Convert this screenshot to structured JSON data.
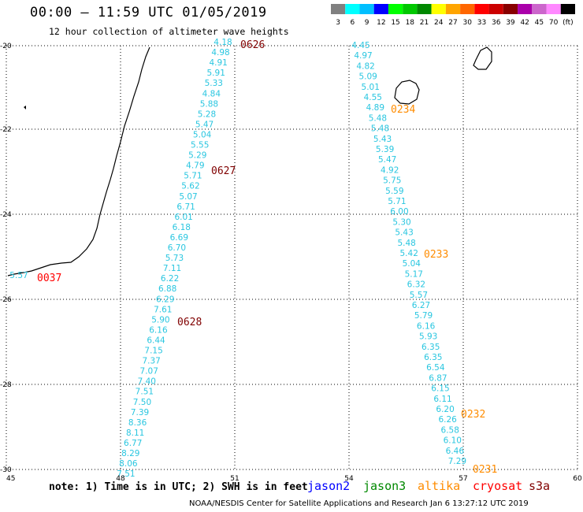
{
  "header": {
    "title": "00:00 — 11:59 UTC 01/05/2019",
    "subtitle": "12 hour collection of altimeter wave heights"
  },
  "legend": {
    "colors": [
      "#808080",
      "#00ffff",
      "#00bfff",
      "#0000ff",
      "#00ff00",
      "#00c800",
      "#008800",
      "#ffff00",
      "#ffa500",
      "#ff6600",
      "#ff0000",
      "#cc0000",
      "#880000",
      "#aa00aa",
      "#cc66cc",
      "#ff88ff",
      "#000000"
    ],
    "labels": [
      "3",
      "6",
      "9",
      "12",
      "15",
      "18",
      "21",
      "24",
      "27",
      "30",
      "33",
      "36",
      "39",
      "42",
      "45",
      "70",
      "(ft)"
    ]
  },
  "axes": {
    "x_ticks": [
      "45",
      "48",
      "51",
      "54",
      "57",
      "60"
    ],
    "y_ticks": [
      "-20",
      "-22",
      "-24",
      "-26",
      "-28",
      "-30"
    ]
  },
  "tracks": [
    {
      "name": "track-1",
      "values": [
        "4.18",
        "4.98",
        "4.91",
        "5.91",
        "5.33",
        "4.84",
        "5.88",
        "5.28",
        "5.47",
        "5.04",
        "5.55",
        "5.29",
        "4.79",
        "5.71",
        "5.62",
        "5.07",
        "6.71",
        "6.01",
        "6.18",
        "6.69",
        "6.70",
        "5.73",
        "7.11",
        "6.22",
        "6.88",
        "6.29",
        "7.61",
        "5.90",
        "6.16",
        "6.44",
        "7.15",
        "7.37",
        "7.07",
        "7.40",
        "7.51",
        "7.50",
        "7.39",
        "8.36",
        "8.11",
        "6.77",
        "8.29",
        "8.06",
        "7.51"
      ]
    },
    {
      "name": "track-2",
      "values": [
        "4.45",
        "4.97",
        "4.82",
        "5.09",
        "5.01",
        "4.55",
        "4.89",
        "5.48",
        "5.48",
        "5.43",
        "5.39",
        "5.47",
        "4.92",
        "5.75",
        "5.59",
        "5.71",
        "6.00",
        "5.30",
        "5.43",
        "5.48",
        "5.42",
        "5.04",
        "5.17",
        "6.32",
        "5.57",
        "6.27",
        "5.79",
        "6.16",
        "5.93",
        "6.35",
        "6.35",
        "6.54",
        "6.87",
        "6.15",
        "6.11",
        "6.20",
        "6.26",
        "6.58",
        "6.10",
        "6.46",
        "7.29"
      ]
    },
    {
      "name": "track-3",
      "values": [
        "5.57"
      ]
    }
  ],
  "time_labels": [
    {
      "text": "0626",
      "color": "#800000"
    },
    {
      "text": "0627",
      "color": "#800000"
    },
    {
      "text": "0628",
      "color": "#800000"
    },
    {
      "text": "0037",
      "color": "#ff0000"
    },
    {
      "text": "0234",
      "color": "#ff8c00"
    },
    {
      "text": "0233",
      "color": "#ff8c00"
    },
    {
      "text": "0232",
      "color": "#ff8c00"
    },
    {
      "text": "0231",
      "color": "#ff8c00"
    }
  ],
  "footer": {
    "note": "note: 1) Time is in UTC; 2) SWH is in feet",
    "satellites": [
      {
        "name": "jason2",
        "color": "#0000ff"
      },
      {
        "name": "jason3",
        "color": "#008800"
      },
      {
        "name": "altika",
        "color": "#ff8c00"
      },
      {
        "name": "cryosat",
        "color": "#ff0000"
      },
      {
        "name": "s3a",
        "color": "#800000"
      }
    ],
    "credit": "NOAA/NESDIS Center for Satellite Applications and Research    Jan  6 13:27:12 UTC 2019"
  }
}
